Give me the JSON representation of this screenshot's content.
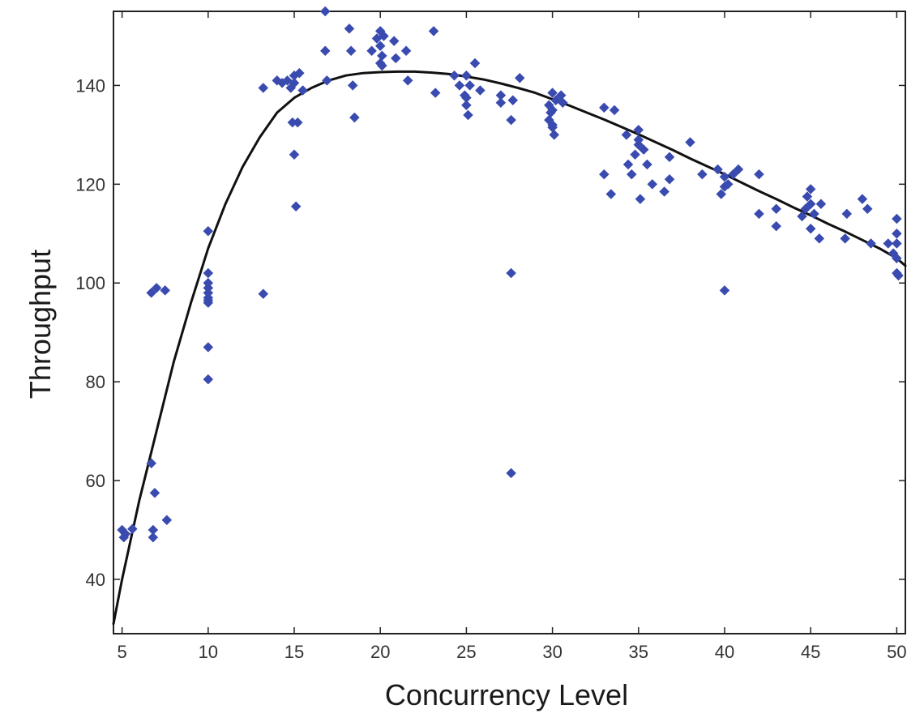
{
  "chart_data": {
    "type": "scatter",
    "title": "",
    "xlabel": "Concurrency Level",
    "ylabel": "Throughput",
    "xlim": [
      4.5,
      50.5
    ],
    "ylim": [
      29,
      155
    ],
    "x_ticks": [
      5,
      10,
      15,
      20,
      25,
      30,
      35,
      40,
      45,
      50
    ],
    "y_ticks": [
      40,
      60,
      80,
      100,
      120,
      140
    ],
    "grid": false,
    "legend": "none",
    "colors": {
      "points": "#3a4bb0",
      "fit_line": "#111111",
      "axes": "#222222"
    },
    "series": [
      {
        "kind": "points",
        "x": [
          5.0,
          5.1,
          5.2,
          5.6,
          6.7,
          6.7,
          6.8,
          6.9,
          6.8,
          7.0,
          7.5,
          7.6,
          10.0,
          10.0,
          10.0,
          10.0,
          10.0,
          10.0,
          10.0,
          10.0,
          10.0,
          10.0,
          13.2,
          13.2,
          14.0,
          14.3,
          14.6,
          14.8,
          14.9,
          15.0,
          15.0,
          15.0,
          15.1,
          15.2,
          15.3,
          15.5,
          16.8,
          16.8,
          16.9,
          18.2,
          18.3,
          18.4,
          18.5,
          19.5,
          19.8,
          20.0,
          20.0,
          20.0,
          20.1,
          20.1,
          20.2,
          20.8,
          20.9,
          21.5,
          21.6,
          23.1,
          23.2,
          24.3,
          24.6,
          24.9,
          25.0,
          25.0,
          25.0,
          25.1,
          25.2,
          25.5,
          25.8,
          27.0,
          27.0,
          27.6,
          27.6,
          27.6,
          27.7,
          28.1,
          29.8,
          29.8,
          29.9,
          30.0,
          30.0,
          30.0,
          30.0,
          30.1,
          30.2,
          30.5,
          30.6,
          33.0,
          33.0,
          33.4,
          33.6,
          34.3,
          34.4,
          34.6,
          34.8,
          35.0,
          35.0,
          35.0,
          35.1,
          35.3,
          35.5,
          35.8,
          36.5,
          36.8,
          36.8,
          38.0,
          38.7,
          39.6,
          39.8,
          40.0,
          40.0,
          40.0,
          40.2,
          40.5,
          40.8,
          42.0,
          42.0,
          43.0,
          43.0,
          44.5,
          44.7,
          44.8,
          45.0,
          45.0,
          45.0,
          45.2,
          45.5,
          45.6,
          47.0,
          47.1,
          48.0,
          48.3,
          48.5,
          49.5,
          49.8,
          50.0,
          50.0,
          50.0,
          50.0,
          50.0,
          50.1
        ],
        "y": [
          50,
          48.5,
          49.2,
          50.2,
          98,
          63.5,
          48.5,
          57.5,
          50,
          99,
          98.5,
          52,
          110.5,
          102,
          100,
          98,
          97,
          96.5,
          96,
          87,
          80.5,
          99,
          139.5,
          97.8,
          141,
          140.5,
          141,
          139.5,
          132.5,
          142,
          140.5,
          126,
          115.5,
          132.5,
          142.5,
          139,
          155,
          147,
          141,
          151.5,
          147,
          140,
          133.5,
          147,
          149.5,
          151,
          148,
          144.5,
          146,
          144,
          150,
          149,
          145.5,
          147,
          141,
          151,
          138.5,
          142,
          140,
          138,
          142,
          137.5,
          136,
          134,
          140,
          144.5,
          139,
          138,
          136.5,
          133,
          102,
          61.5,
          137,
          141.5,
          133,
          136,
          134.5,
          138.5,
          135,
          132,
          131.5,
          130,
          137,
          138,
          136.5,
          135.5,
          122,
          118,
          135,
          130,
          124,
          122,
          126,
          131,
          128,
          129,
          117,
          127,
          124,
          120,
          118.5,
          125.5,
          121,
          128.5,
          122,
          123,
          118,
          121.5,
          119.5,
          98.5,
          120,
          122,
          123,
          122,
          114,
          115,
          111.5,
          113.5,
          115,
          117.5,
          119,
          116,
          111,
          114,
          109,
          116,
          109,
          114,
          117,
          115,
          108,
          108,
          106,
          113,
          110,
          108,
          105,
          102,
          101.5
        ]
      },
      {
        "kind": "fit_line",
        "x": [
          4.5,
          5,
          6,
          7,
          8,
          9,
          10,
          11,
          12,
          13,
          14,
          15,
          16,
          17,
          18,
          19,
          20,
          21,
          22,
          23,
          24,
          25,
          26,
          27,
          28,
          29,
          30,
          31,
          32,
          33,
          34,
          35,
          36,
          37,
          38,
          39,
          40,
          41,
          42,
          43,
          44,
          45,
          46,
          47,
          48,
          49,
          50,
          50.5
        ],
        "y": [
          31,
          40,
          56,
          70,
          84,
          96,
          107,
          116,
          123.5,
          129.5,
          134.5,
          137.5,
          139.5,
          141,
          142,
          142.5,
          142.7,
          142.8,
          142.8,
          142.6,
          142.3,
          141.8,
          141.2,
          140.4,
          139.5,
          138.5,
          137.2,
          135.9,
          134.5,
          133.1,
          131.6,
          130.1,
          128.5,
          126.9,
          125.2,
          123.6,
          122,
          120.3,
          118.6,
          117,
          115.3,
          113.7,
          112,
          110.4,
          108.7,
          107,
          105,
          103.5
        ]
      }
    ]
  }
}
